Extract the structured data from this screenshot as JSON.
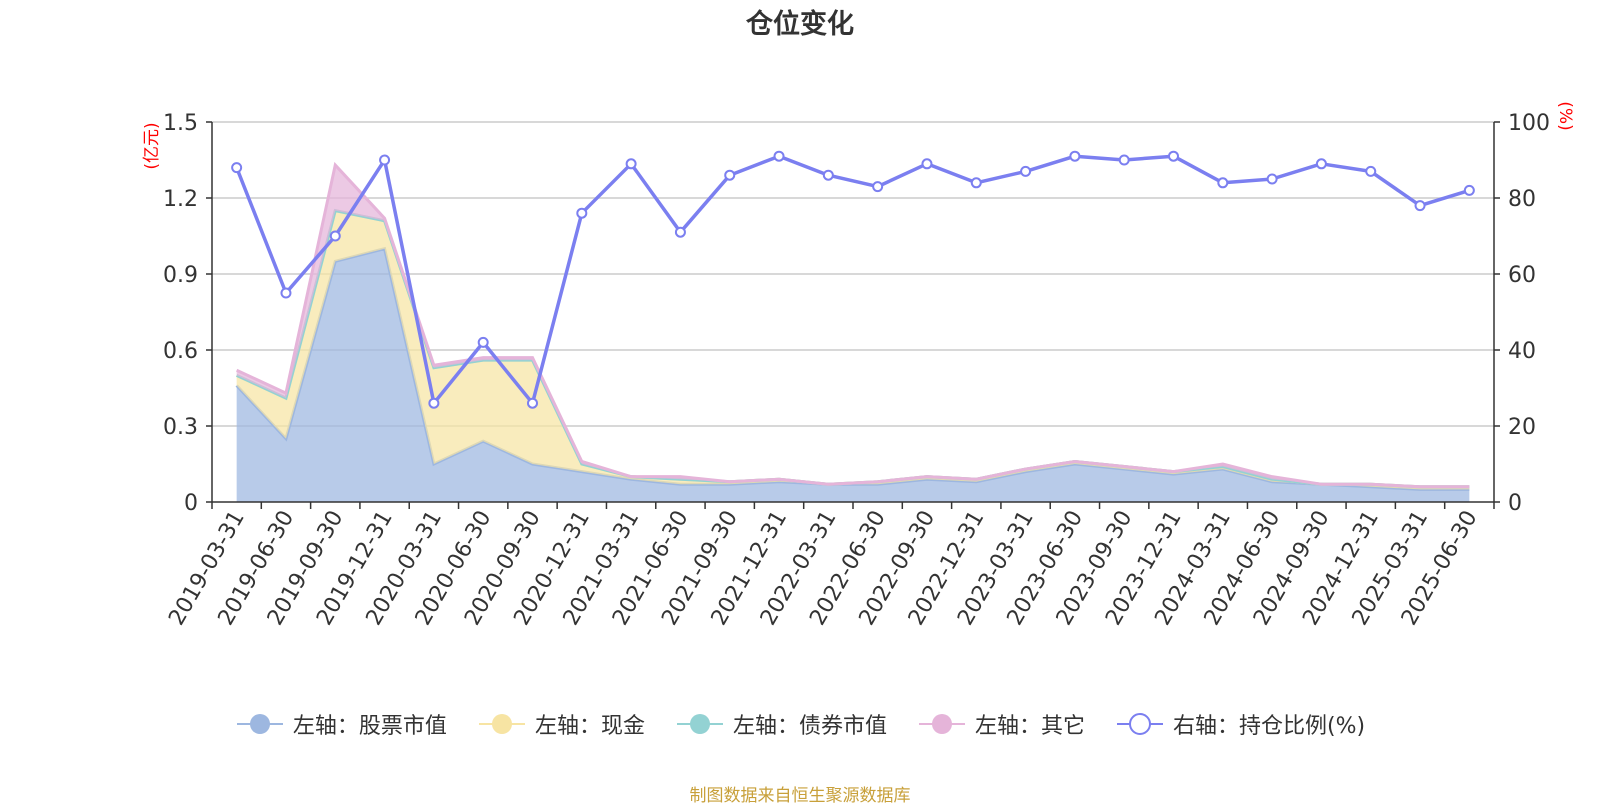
{
  "chart_data": {
    "type": "area",
    "title": "仓位变化",
    "left_axis": {
      "unit_label": "(亿元)",
      "ylim": [
        0,
        1.5
      ],
      "ticks": [
        0,
        0.3,
        0.6,
        0.9,
        1.2,
        1.5
      ],
      "tick_labels": [
        "0",
        "0.3",
        "0.6",
        "0.9",
        "1.2",
        "1.5"
      ]
    },
    "right_axis": {
      "unit_label": "(%)",
      "ylim": [
        0,
        100
      ],
      "ticks": [
        0,
        20,
        40,
        60,
        80,
        100
      ],
      "tick_labels": [
        "0",
        "20",
        "40",
        "60",
        "80",
        "100"
      ]
    },
    "categories": [
      "2019-03-31",
      "2019-06-30",
      "2019-09-30",
      "2019-12-31",
      "2020-03-31",
      "2020-06-30",
      "2020-09-30",
      "2020-12-31",
      "2021-03-31",
      "2021-06-30",
      "2021-09-30",
      "2021-12-31",
      "2022-03-31",
      "2022-06-30",
      "2022-09-30",
      "2022-12-31",
      "2023-03-31",
      "2023-06-30",
      "2023-09-30",
      "2023-12-31",
      "2024-03-31",
      "2024-06-30",
      "2024-09-30",
      "2024-12-31",
      "2025-03-31",
      "2025-06-30"
    ],
    "stacked_series": [
      {
        "name": "左轴：股票市值",
        "color": "#9db7e0",
        "values": [
          0.46,
          0.25,
          0.95,
          1.0,
          0.15,
          0.24,
          0.15,
          0.12,
          0.09,
          0.07,
          0.07,
          0.08,
          0.07,
          0.07,
          0.09,
          0.08,
          0.12,
          0.15,
          0.13,
          0.11,
          0.13,
          0.08,
          0.07,
          0.06,
          0.05,
          0.05
        ]
      },
      {
        "name": "左轴：现金",
        "color": "#f7e4a3",
        "values": [
          0.04,
          0.16,
          0.2,
          0.11,
          0.38,
          0.32,
          0.41,
          0.03,
          0.01,
          0.02,
          0.01,
          0.01,
          0.0,
          0.01,
          0.01,
          0.01,
          0.01,
          0.01,
          0.01,
          0.01,
          0.01,
          0.01,
          0.0,
          0.01,
          0.01,
          0.01
        ]
      },
      {
        "name": "左轴：债券市值",
        "color": "#93d2d3",
        "values": [
          0.0,
          0.0,
          0.0,
          0.0,
          0.0,
          0.0,
          0.0,
          0.0,
          0.0,
          0.0,
          0.0,
          0.0,
          0.0,
          0.0,
          0.0,
          0.0,
          0.0,
          0.0,
          0.0,
          0.0,
          0.0,
          0.0,
          0.0,
          0.0,
          0.0,
          0.0
        ]
      },
      {
        "name": "左轴：其它",
        "color": "#e5b4d9",
        "values": [
          0.02,
          0.02,
          0.18,
          0.01,
          0.01,
          0.01,
          0.01,
          0.01,
          0.0,
          0.01,
          0.0,
          0.0,
          0.0,
          0.0,
          0.0,
          0.0,
          0.0,
          0.0,
          0.0,
          0.0,
          0.01,
          0.01,
          0.0,
          0.0,
          0.0,
          0.0
        ]
      }
    ],
    "line_series": {
      "name": "右轴：持仓比例(%)",
      "color": "#7b7ff0",
      "axis": "right",
      "values": [
        88,
        55,
        70,
        90,
        26,
        42,
        26,
        76,
        89,
        71,
        86,
        91,
        86,
        83,
        89,
        84,
        87,
        91,
        90,
        91,
        84,
        85,
        89,
        87,
        78,
        82
      ]
    },
    "grid": true,
    "legend_position": "bottom"
  },
  "legend": [
    {
      "label": "左轴：股票市值",
      "color": "#9db7e0",
      "style": "filled-circle"
    },
    {
      "label": "左轴：现金",
      "color": "#f7e4a3",
      "style": "filled-circle"
    },
    {
      "label": "左轴：债券市值",
      "color": "#93d2d3",
      "style": "filled-circle"
    },
    {
      "label": "左轴：其它",
      "color": "#e5b4d9",
      "style": "filled-circle"
    },
    {
      "label": "右轴：持仓比例(%)",
      "color": "#7b7ff0",
      "style": "hollow-circle"
    }
  ],
  "footer": {
    "source": "制图数据来自恒生聚源数据库"
  },
  "colors": {
    "axis_unit": "#ff0000",
    "grid": "#cccccc",
    "axis": "#333333",
    "text": "#333333"
  }
}
